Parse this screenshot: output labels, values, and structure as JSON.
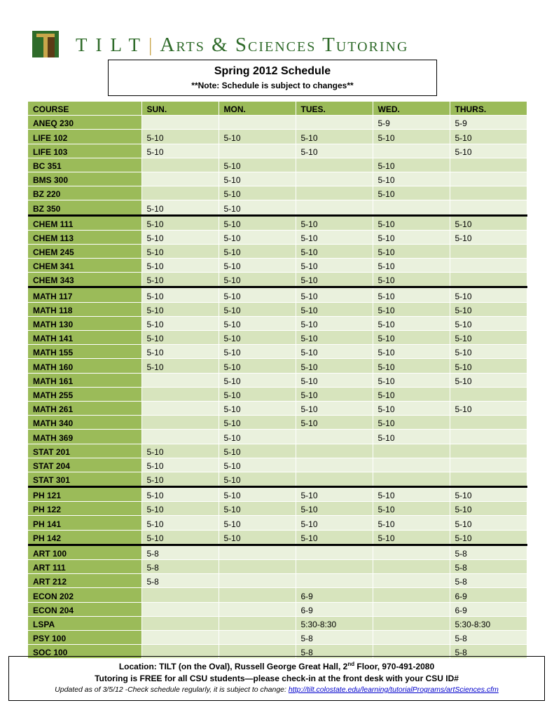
{
  "header": {
    "brand_tilt": "TILT",
    "brand_sep": "|",
    "brand_sub": "Arts & Sciences Tutoring",
    "title": "Spring 2012 Schedule",
    "note": "**Note: Schedule is subject to changes**"
  },
  "colors": {
    "brand_green": "#2f6b2a",
    "gold": "#c9a64a",
    "header_cell": "#9bbb59",
    "row_light": "#eaf1dd",
    "row_dark": "#d7e4bd"
  },
  "table": {
    "columns": [
      "COURSE",
      "SUN.",
      "MON.",
      "TUES.",
      "WED.",
      "THURS."
    ],
    "rows": [
      [
        "ANEQ 230",
        "",
        "",
        "",
        "5-9",
        "5-9"
      ],
      [
        "LIFE 102",
        "5-10",
        "5-10",
        "5-10",
        "5-10",
        "5-10"
      ],
      [
        "LIFE 103",
        "5-10",
        "",
        "5-10",
        "",
        "5-10"
      ],
      [
        "BC 351",
        "",
        "5-10",
        "",
        "5-10",
        ""
      ],
      [
        "BMS 300",
        "",
        "5-10",
        "",
        "5-10",
        ""
      ],
      [
        "BZ 220",
        "",
        "5-10",
        "",
        "5-10",
        ""
      ],
      [
        "BZ 350",
        "5-10",
        "5-10",
        "",
        "",
        ""
      ],
      [
        "CHEM 111",
        "5-10",
        "5-10",
        "5-10",
        "5-10",
        "5-10"
      ],
      [
        "CHEM 113",
        "5-10",
        "5-10",
        "5-10",
        "5-10",
        "5-10"
      ],
      [
        "CHEM 245",
        "5-10",
        "5-10",
        "5-10",
        "5-10",
        ""
      ],
      [
        "CHEM 341",
        "5-10",
        "5-10",
        "5-10",
        "5-10",
        ""
      ],
      [
        "CHEM 343",
        "5-10",
        "5-10",
        "5-10",
        "5-10",
        ""
      ],
      [
        "MATH 117",
        "5-10",
        "5-10",
        "5-10",
        "5-10",
        "5-10"
      ],
      [
        "MATH 118",
        "5-10",
        "5-10",
        "5-10",
        "5-10",
        "5-10"
      ],
      [
        "MATH 130",
        "5-10",
        "5-10",
        "5-10",
        "5-10",
        "5-10"
      ],
      [
        "MATH 141",
        "5-10",
        "5-10",
        "5-10",
        "5-10",
        "5-10"
      ],
      [
        "MATH 155",
        "5-10",
        "5-10",
        "5-10",
        "5-10",
        "5-10"
      ],
      [
        "MATH 160",
        "5-10",
        "5-10",
        "5-10",
        "5-10",
        "5-10"
      ],
      [
        "MATH 161",
        "",
        "5-10",
        "5-10",
        "5-10",
        "5-10"
      ],
      [
        "MATH 255",
        "",
        "5-10",
        "5-10",
        "5-10",
        ""
      ],
      [
        "MATH 261",
        "",
        "5-10",
        "5-10",
        "5-10",
        "5-10"
      ],
      [
        "MATH 340",
        "",
        "5-10",
        "5-10",
        "5-10",
        ""
      ],
      [
        "MATH 369",
        "",
        "5-10",
        "",
        "5-10",
        ""
      ],
      [
        "STAT 201",
        "5-10",
        "5-10",
        "",
        "",
        ""
      ],
      [
        "STAT 204",
        "5-10",
        "5-10",
        "",
        "",
        ""
      ],
      [
        "STAT 301",
        "5-10",
        "5-10",
        "",
        "",
        ""
      ],
      [
        "PH 121",
        "5-10",
        "5-10",
        "5-10",
        "5-10",
        "5-10"
      ],
      [
        "PH 122",
        "5-10",
        "5-10",
        "5-10",
        "5-10",
        "5-10"
      ],
      [
        "PH 141",
        "5-10",
        "5-10",
        "5-10",
        "5-10",
        "5-10"
      ],
      [
        "PH 142",
        "5-10",
        "5-10",
        "5-10",
        "5-10",
        "5-10"
      ],
      [
        "ART 100",
        "5-8",
        "",
        "",
        "",
        "5-8"
      ],
      [
        "ART 111",
        "5-8",
        "",
        "",
        "",
        "5-8"
      ],
      [
        "ART 212",
        "5-8",
        "",
        "",
        "",
        "5-8"
      ],
      [
        "ECON 202",
        "",
        "",
        "6-9",
        "",
        "6-9"
      ],
      [
        "ECON 204",
        "",
        "",
        "6-9",
        "",
        "6-9"
      ],
      [
        "LSPA",
        "",
        "",
        "5:30-8:30",
        "",
        "5:30-8:30"
      ],
      [
        "PSY 100",
        "",
        "",
        "5-8",
        "",
        "5-8"
      ],
      [
        "SOC 100",
        "",
        "",
        "5-8",
        "",
        "5-8"
      ]
    ],
    "separator_before_rows": [
      "CHEM 111",
      "MATH 117",
      "PH 121",
      "ART 100"
    ]
  },
  "footer": {
    "location_prefix": "Location: TILT (on the Oval), Russell George Great Hall, 2",
    "location_sup": "nd",
    "location_suffix": " Floor, 970-491-2080",
    "free_line": "Tutoring is FREE for all CSU students—please check-in at the front desk with your CSU ID#",
    "updated_line": "Updated as of 3/5/12 -Check schedule regularly, it is subject to change: ",
    "link": "http://tilt.colostate.edu/learning/tutorialPrograms/artSciences.cfm"
  }
}
